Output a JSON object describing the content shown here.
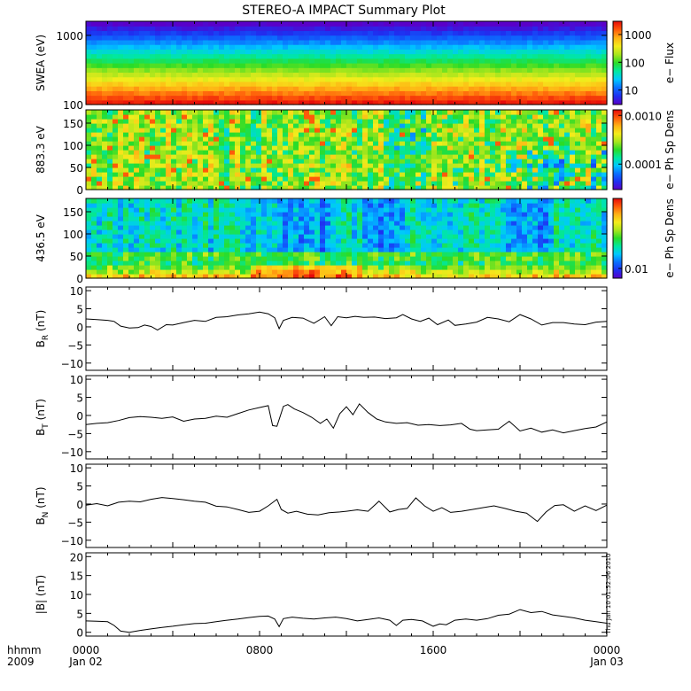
{
  "figure": {
    "title": "STEREO-A IMPACT Summary Plot",
    "timestamp_label": "Thu Jan 10 01:52:06 2010",
    "time_axis": {
      "label_top": "hhmm",
      "label_bottom": "2009",
      "range_hours": [
        0,
        24
      ],
      "ticks": [
        {
          "hour": 0,
          "top": "0000",
          "bottom": "Jan 02"
        },
        {
          "hour": 8,
          "top": "0800",
          "bottom": ""
        },
        {
          "hour": 16,
          "top": "1600",
          "bottom": ""
        },
        {
          "hour": 24,
          "top": "0000",
          "bottom": "Jan 03"
        }
      ]
    }
  },
  "chart_data": [
    {
      "type": "heatmap",
      "id": "swea",
      "ylabel": "SWEA (eV)",
      "y_scale": "log",
      "ylim": [
        100,
        1600
      ],
      "yticks": [
        {
          "v": 100,
          "t": "100"
        },
        {
          "v": 1000,
          "t": "1000"
        }
      ],
      "colorbar": {
        "label": "e− Flux",
        "scale": "log",
        "range": [
          3,
          3000
        ],
        "ticks": [
          {
            "v": 10,
            "t": "10"
          },
          {
            "v": 100,
            "t": "100"
          },
          {
            "v": 1000,
            "t": "1000"
          }
        ]
      },
      "description_rows_low_to_high_energy": "flux decreasing with energy: red/orange near 100 eV, yellow ~200 eV, green ~300-600 eV, cyan/blue ~800-1100 eV, purple above 1200 eV; roughly constant through the day"
    },
    {
      "type": "heatmap",
      "id": "pad883",
      "ylabel": "883.3 eV",
      "ylim": [
        0,
        180
      ],
      "yticks": [
        {
          "v": 0,
          "t": "0"
        },
        {
          "v": 50,
          "t": "50"
        },
        {
          "v": 100,
          "t": "100"
        },
        {
          "v": 150,
          "t": "150"
        }
      ],
      "colorbar": {
        "label": "e− Ph Sp Dens",
        "scale": "log",
        "range": [
          3e-05,
          0.0013
        ],
        "ticks": [
          {
            "v": 0.0001,
            "t": "0.0001"
          },
          {
            "v": 0.001,
            "t": "0.0010"
          }
        ]
      }
    },
    {
      "type": "heatmap",
      "id": "pad436",
      "ylabel": "436.5 eV",
      "ylim": [
        0,
        180
      ],
      "yticks": [
        {
          "v": 0,
          "t": "0"
        },
        {
          "v": 50,
          "t": "50"
        },
        {
          "v": 100,
          "t": "100"
        },
        {
          "v": 150,
          "t": "150"
        }
      ],
      "colorbar": {
        "label": "e− Ph Sp Dens",
        "scale": "log",
        "range": [
          0.008,
          0.05
        ],
        "ticks": [
          {
            "v": 0.01,
            "t": "0.01"
          }
        ]
      }
    },
    {
      "type": "line",
      "id": "br",
      "ylabel": "B",
      "ylabel_sub": "R",
      "ylabel_unit": "(nT)",
      "ylim": [
        -12,
        11
      ],
      "yticks": [
        {
          "v": -10,
          "t": "−10"
        },
        {
          "v": -5,
          "t": "−5"
        },
        {
          "v": 0,
          "t": "0"
        },
        {
          "v": 5,
          "t": "5"
        },
        {
          "v": 10,
          "t": "10"
        }
      ],
      "x": [
        0,
        0.5,
        1,
        1.3,
        1.6,
        2.0,
        2.4,
        2.7,
        3.0,
        3.3,
        3.7,
        4.0,
        4.5,
        5.0,
        5.5,
        6.0,
        6.5,
        7.0,
        7.5,
        8.0,
        8.4,
        8.7,
        8.9,
        9.1,
        9.5,
        10.0,
        10.5,
        11.0,
        11.3,
        11.6,
        12.0,
        12.4,
        12.8,
        13.3,
        13.8,
        14.3,
        14.6,
        15.0,
        15.4,
        15.8,
        16.2,
        16.7,
        17.0,
        17.5,
        18.0,
        18.5,
        19.0,
        19.5,
        20.0,
        20.5,
        21.0,
        21.5,
        22.0,
        22.5,
        23.0,
        23.5,
        24.0
      ],
      "values": [
        2.2,
        2.0,
        1.8,
        1.5,
        0.2,
        -0.3,
        -0.2,
        0.5,
        0.1,
        -0.9,
        0.6,
        0.5,
        1.2,
        1.8,
        1.5,
        2.6,
        2.8,
        3.3,
        3.6,
        4.1,
        3.6,
        2.5,
        -0.5,
        1.8,
        2.6,
        2.4,
        1.0,
        2.8,
        0.3,
        2.8,
        2.5,
        2.9,
        2.6,
        2.7,
        2.3,
        2.5,
        3.4,
        2.2,
        1.5,
        2.4,
        0.6,
        1.9,
        0.4,
        0.8,
        1.3,
        2.6,
        2.2,
        1.4,
        3.4,
        2.2,
        0.5,
        1.2,
        1.2,
        0.8,
        0.6,
        1.3,
        1.5
      ]
    },
    {
      "type": "line",
      "id": "bt",
      "ylabel": "B",
      "ylabel_sub": "T",
      "ylabel_unit": "(nT)",
      "ylim": [
        -12,
        11
      ],
      "yticks": [
        {
          "v": -10,
          "t": "−10"
        },
        {
          "v": -5,
          "t": "−5"
        },
        {
          "v": 0,
          "t": "0"
        },
        {
          "v": 5,
          "t": "5"
        },
        {
          "v": 10,
          "t": "10"
        }
      ],
      "x": [
        0,
        0.5,
        1,
        1.5,
        2.0,
        2.5,
        3.0,
        3.5,
        4.0,
        4.5,
        5.0,
        5.5,
        6.0,
        6.5,
        7.0,
        7.5,
        8.0,
        8.4,
        8.6,
        8.8,
        9.1,
        9.3,
        9.6,
        10.0,
        10.4,
        10.8,
        11.1,
        11.4,
        11.7,
        12.0,
        12.3,
        12.6,
        13.0,
        13.4,
        13.8,
        14.3,
        14.8,
        15.3,
        15.8,
        16.3,
        16.8,
        17.3,
        17.7,
        18.0,
        18.5,
        19.0,
        19.5,
        20.0,
        20.5,
        21.0,
        21.5,
        22.0,
        22.5,
        23.0,
        23.5,
        24.0
      ],
      "values": [
        -2.5,
        -2.2,
        -2.0,
        -1.4,
        -0.6,
        -0.3,
        -0.5,
        -0.8,
        -0.4,
        -1.6,
        -1.0,
        -0.8,
        -0.2,
        -0.5,
        0.5,
        1.5,
        2.2,
        2.7,
        -2.8,
        -3.0,
        2.5,
        3.0,
        1.8,
        0.8,
        -0.5,
        -2.2,
        -1.0,
        -3.5,
        0.5,
        2.4,
        0.2,
        3.2,
        0.8,
        -1.0,
        -1.8,
        -2.2,
        -2.0,
        -2.7,
        -2.5,
        -2.8,
        -2.6,
        -2.2,
        -3.8,
        -4.2,
        -4.0,
        -3.8,
        -1.6,
        -4.3,
        -3.5,
        -4.6,
        -4.0,
        -4.8,
        -4.2,
        -3.6,
        -3.2,
        -1.8
      ]
    },
    {
      "type": "line",
      "id": "bn",
      "ylabel": "B",
      "ylabel_sub": "N",
      "ylabel_unit": "(nT)",
      "ylim": [
        -12,
        11
      ],
      "yticks": [
        {
          "v": -10,
          "t": "−10"
        },
        {
          "v": -5,
          "t": "−5"
        },
        {
          "v": 0,
          "t": "0"
        },
        {
          "v": 5,
          "t": "5"
        },
        {
          "v": 10,
          "t": "10"
        }
      ],
      "x": [
        0,
        0.5,
        1,
        1.5,
        2.0,
        2.5,
        3.0,
        3.5,
        4.0,
        4.5,
        5.0,
        5.5,
        6.0,
        6.5,
        7.0,
        7.5,
        8.0,
        8.4,
        8.8,
        9.0,
        9.3,
        9.7,
        10.2,
        10.7,
        11.2,
        11.7,
        12.0,
        12.5,
        13.0,
        13.5,
        14.0,
        14.4,
        14.8,
        15.2,
        15.6,
        16.0,
        16.4,
        16.8,
        17.3,
        17.8,
        18.3,
        18.8,
        19.3,
        19.8,
        20.3,
        20.8,
        21.2,
        21.6,
        22.0,
        22.5,
        23.0,
        23.5,
        24.0
      ],
      "values": [
        -0.3,
        0.1,
        -0.5,
        0.5,
        0.8,
        0.6,
        1.3,
        1.8,
        1.5,
        1.2,
        0.8,
        0.5,
        -0.6,
        -0.8,
        -1.5,
        -2.3,
        -2.0,
        -0.5,
        1.3,
        -1.5,
        -2.5,
        -2.0,
        -2.8,
        -3.0,
        -2.4,
        -2.2,
        -2.0,
        -1.6,
        -2.0,
        0.8,
        -2.2,
        -1.5,
        -1.2,
        1.7,
        -0.5,
        -2.0,
        -1.0,
        -2.3,
        -2.0,
        -1.5,
        -1.0,
        -0.5,
        -1.2,
        -2.0,
        -2.5,
        -4.8,
        -2.2,
        -0.4,
        -0.2,
        -2.0,
        -0.5,
        -1.8,
        -0.3
      ]
    },
    {
      "type": "line",
      "id": "bmag",
      "ylabel": "|B|",
      "ylabel_unit": "(nT)",
      "ylim": [
        -1,
        21
      ],
      "yticks": [
        {
          "v": 0,
          "t": "0"
        },
        {
          "v": 5,
          "t": "5"
        },
        {
          "v": 10,
          "t": "10"
        },
        {
          "v": 15,
          "t": "15"
        },
        {
          "v": 20,
          "t": "20"
        }
      ],
      "x": [
        0,
        0.5,
        1,
        1.3,
        1.6,
        2.0,
        2.5,
        3.0,
        3.5,
        4.0,
        4.5,
        5.0,
        5.5,
        6.0,
        6.5,
        7.0,
        7.5,
        8.0,
        8.4,
        8.7,
        8.9,
        9.1,
        9.5,
        10.0,
        10.5,
        11.0,
        11.5,
        12.0,
        12.5,
        13.0,
        13.5,
        14.0,
        14.3,
        14.6,
        15.0,
        15.5,
        16.0,
        16.3,
        16.6,
        17.0,
        17.5,
        18.0,
        18.5,
        19.0,
        19.5,
        20.0,
        20.5,
        21.0,
        21.5,
        22.0,
        22.5,
        23.0,
        23.5,
        24.0
      ],
      "values": [
        3.0,
        2.9,
        2.8,
        1.8,
        0.3,
        0.0,
        0.5,
        0.9,
        1.3,
        1.6,
        2.0,
        2.3,
        2.4,
        2.8,
        3.2,
        3.5,
        3.9,
        4.2,
        4.3,
        3.5,
        1.5,
        3.6,
        4.0,
        3.7,
        3.5,
        3.8,
        4.0,
        3.6,
        3.0,
        3.4,
        3.8,
        3.2,
        1.8,
        3.2,
        3.4,
        3.0,
        1.6,
        2.2,
        2.0,
        3.2,
        3.5,
        3.2,
        3.6,
        4.5,
        4.8,
        6.0,
        5.2,
        5.5,
        4.6,
        4.2,
        3.8,
        3.2,
        2.8,
        2.4
      ]
    }
  ],
  "colors": {
    "line": "#000000",
    "colormap": [
      "#5a00c8",
      "#1f2ff0",
      "#0b6eff",
      "#00c8ff",
      "#00e8a0",
      "#2adc28",
      "#a8e61c",
      "#f4ec1c",
      "#ffb214",
      "#ff5a0a",
      "#e60a0a"
    ]
  }
}
